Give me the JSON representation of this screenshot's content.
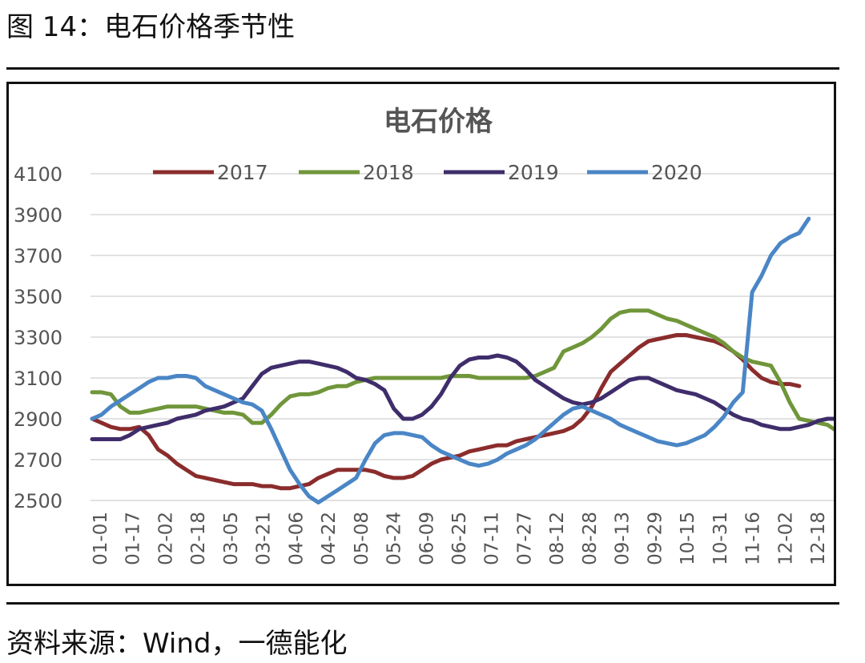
{
  "figure": {
    "title": "图 14：电石价格季节性",
    "source": "资料来源：Wind，一德能化"
  },
  "chart_data": {
    "type": "line",
    "title": "电石价格",
    "xlabel": "",
    "ylabel": "",
    "ylim": [
      2500,
      4100
    ],
    "yticks": [
      2500,
      2700,
      2900,
      3100,
      3300,
      3500,
      3700,
      3900,
      4100
    ],
    "xticks": [
      "01-01",
      "01-17",
      "02-02",
      "02-18",
      "03-05",
      "03-21",
      "04-06",
      "04-22",
      "05-08",
      "05-24",
      "06-09",
      "06-25",
      "07-11",
      "07-27",
      "08-12",
      "08-28",
      "09-13",
      "09-29",
      "10-15",
      "10-31",
      "11-16",
      "12-02",
      "12-18"
    ],
    "grid": true,
    "legend": "top",
    "series": [
      {
        "name": "2017",
        "color": "#8B2C2C",
        "values": [
          2900,
          2880,
          2860,
          2850,
          2850,
          2860,
          2820,
          2750,
          2720,
          2680,
          2650,
          2620,
          2610,
          2600,
          2590,
          2580,
          2580,
          2580,
          2570,
          2570,
          2560,
          2560,
          2570,
          2580,
          2610,
          2630,
          2650,
          2650,
          2650,
          2650,
          2640,
          2620,
          2610,
          2610,
          2620,
          2650,
          2680,
          2700,
          2710,
          2720,
          2740,
          2750,
          2760,
          2770,
          2770,
          2790,
          2800,
          2810,
          2820,
          2830,
          2840,
          2860,
          2900,
          2960,
          3050,
          3130,
          3170,
          3210,
          3250,
          3280,
          3290,
          3300,
          3310,
          3310,
          3300,
          3290,
          3280,
          3260,
          3230,
          3190,
          3140,
          3100,
          3080,
          3070,
          3070,
          3060
        ]
      },
      {
        "name": "2018",
        "color": "#70963A",
        "values": [
          3030,
          3030,
          3020,
          2960,
          2930,
          2930,
          2940,
          2950,
          2960,
          2960,
          2960,
          2960,
          2950,
          2940,
          2930,
          2930,
          2920,
          2880,
          2880,
          2920,
          2970,
          3010,
          3020,
          3020,
          3030,
          3050,
          3060,
          3060,
          3080,
          3090,
          3100,
          3100,
          3100,
          3100,
          3100,
          3100,
          3100,
          3100,
          3110,
          3110,
          3110,
          3100,
          3100,
          3100,
          3100,
          3100,
          3100,
          3110,
          3130,
          3150,
          3230,
          3250,
          3270,
          3300,
          3340,
          3390,
          3420,
          3430,
          3430,
          3430,
          3410,
          3390,
          3380,
          3360,
          3340,
          3320,
          3300,
          3270,
          3230,
          3200,
          3180,
          3170,
          3160,
          3080,
          2980,
          2900,
          2890,
          2880,
          2870,
          2840
        ]
      },
      {
        "name": "2019",
        "color": "#3F2D6B",
        "values": [
          2800,
          2800,
          2800,
          2800,
          2820,
          2850,
          2860,
          2870,
          2880,
          2900,
          2910,
          2920,
          2940,
          2950,
          2960,
          2980,
          3000,
          3060,
          3120,
          3150,
          3160,
          3170,
          3180,
          3180,
          3170,
          3160,
          3150,
          3130,
          3100,
          3090,
          3070,
          3040,
          2950,
          2900,
          2900,
          2920,
          2960,
          3020,
          3100,
          3160,
          3190,
          3200,
          3200,
          3210,
          3200,
          3180,
          3140,
          3090,
          3060,
          3030,
          3000,
          2980,
          2970,
          2980,
          3000,
          3030,
          3060,
          3090,
          3100,
          3100,
          3080,
          3060,
          3040,
          3030,
          3020,
          3000,
          2980,
          2950,
          2920,
          2900,
          2890,
          2870,
          2860,
          2850,
          2850,
          2860,
          2870,
          2890,
          2900,
          2900
        ]
      },
      {
        "name": "2020",
        "color": "#4A86C6",
        "values": [
          2900,
          2920,
          2960,
          2990,
          3020,
          3050,
          3080,
          3100,
          3100,
          3110,
          3110,
          3100,
          3060,
          3040,
          3020,
          3000,
          2980,
          2970,
          2940,
          2850,
          2750,
          2650,
          2580,
          2520,
          2490,
          2520,
          2550,
          2580,
          2610,
          2700,
          2780,
          2820,
          2830,
          2830,
          2820,
          2810,
          2770,
          2740,
          2720,
          2700,
          2680,
          2670,
          2680,
          2700,
          2730,
          2750,
          2770,
          2800,
          2840,
          2880,
          2920,
          2950,
          2960,
          2940,
          2920,
          2900,
          2870,
          2850,
          2830,
          2810,
          2790,
          2780,
          2770,
          2780,
          2800,
          2820,
          2860,
          2910,
          2980,
          3030,
          3520,
          3600,
          3700,
          3760,
          3790,
          3810,
          3880
        ]
      }
    ]
  }
}
